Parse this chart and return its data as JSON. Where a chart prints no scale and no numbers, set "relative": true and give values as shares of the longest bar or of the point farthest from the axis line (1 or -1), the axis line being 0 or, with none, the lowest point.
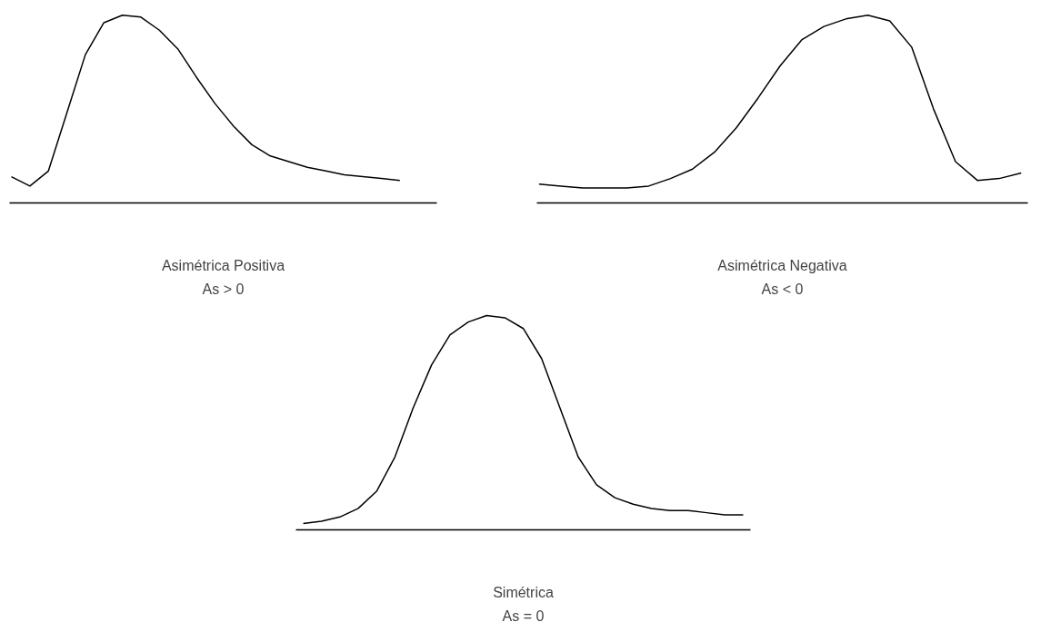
{
  "chart_data": [
    {
      "type": "line",
      "relative": true,
      "xlabel": "Asimétrica Positiva",
      "annotations": [
        "As > 0"
      ],
      "color": "#000000",
      "categories": [
        null,
        null,
        null,
        null,
        null,
        null,
        null,
        null,
        null,
        null,
        null,
        null,
        null,
        null,
        null,
        null,
        null,
        null,
        null,
        null,
        null,
        null
      ],
      "values": [
        0.14,
        0.09,
        0.17,
        0.48,
        0.79,
        0.96,
        1.0,
        0.99,
        0.92,
        0.82,
        0.67,
        0.53,
        0.41,
        0.31,
        0.25,
        0.22,
        0.19,
        0.17,
        0.15,
        0.14,
        0.13,
        0.12
      ]
    },
    {
      "type": "line",
      "relative": true,
      "xlabel": "Asimétrica Negativa",
      "annotations": [
        "As < 0"
      ],
      "color": "#000000",
      "categories": [
        null,
        null,
        null,
        null,
        null,
        null,
        null,
        null,
        null,
        null,
        null,
        null,
        null,
        null,
        null,
        null,
        null,
        null,
        null,
        null,
        null,
        null,
        null
      ],
      "values": [
        0.1,
        0.09,
        0.08,
        0.08,
        0.08,
        0.09,
        0.13,
        0.18,
        0.27,
        0.4,
        0.56,
        0.73,
        0.87,
        0.94,
        0.98,
        1.0,
        0.97,
        0.83,
        0.5,
        0.22,
        0.12,
        0.13,
        0.16
      ]
    },
    {
      "type": "line",
      "relative": true,
      "xlabel": "Simétrica",
      "annotations": [
        "As = 0"
      ],
      "color": "#000000",
      "categories": [
        null,
        null,
        null,
        null,
        null,
        null,
        null,
        null,
        null,
        null,
        null,
        null,
        null,
        null,
        null,
        null,
        null,
        null,
        null,
        null,
        null,
        null,
        null,
        null,
        null
      ],
      "values": [
        0.03,
        0.04,
        0.06,
        0.1,
        0.18,
        0.34,
        0.57,
        0.77,
        0.91,
        0.97,
        1.0,
        0.99,
        0.94,
        0.8,
        0.57,
        0.34,
        0.21,
        0.15,
        0.12,
        0.1,
        0.09,
        0.09,
        0.08,
        0.07,
        0.07
      ]
    }
  ]
}
